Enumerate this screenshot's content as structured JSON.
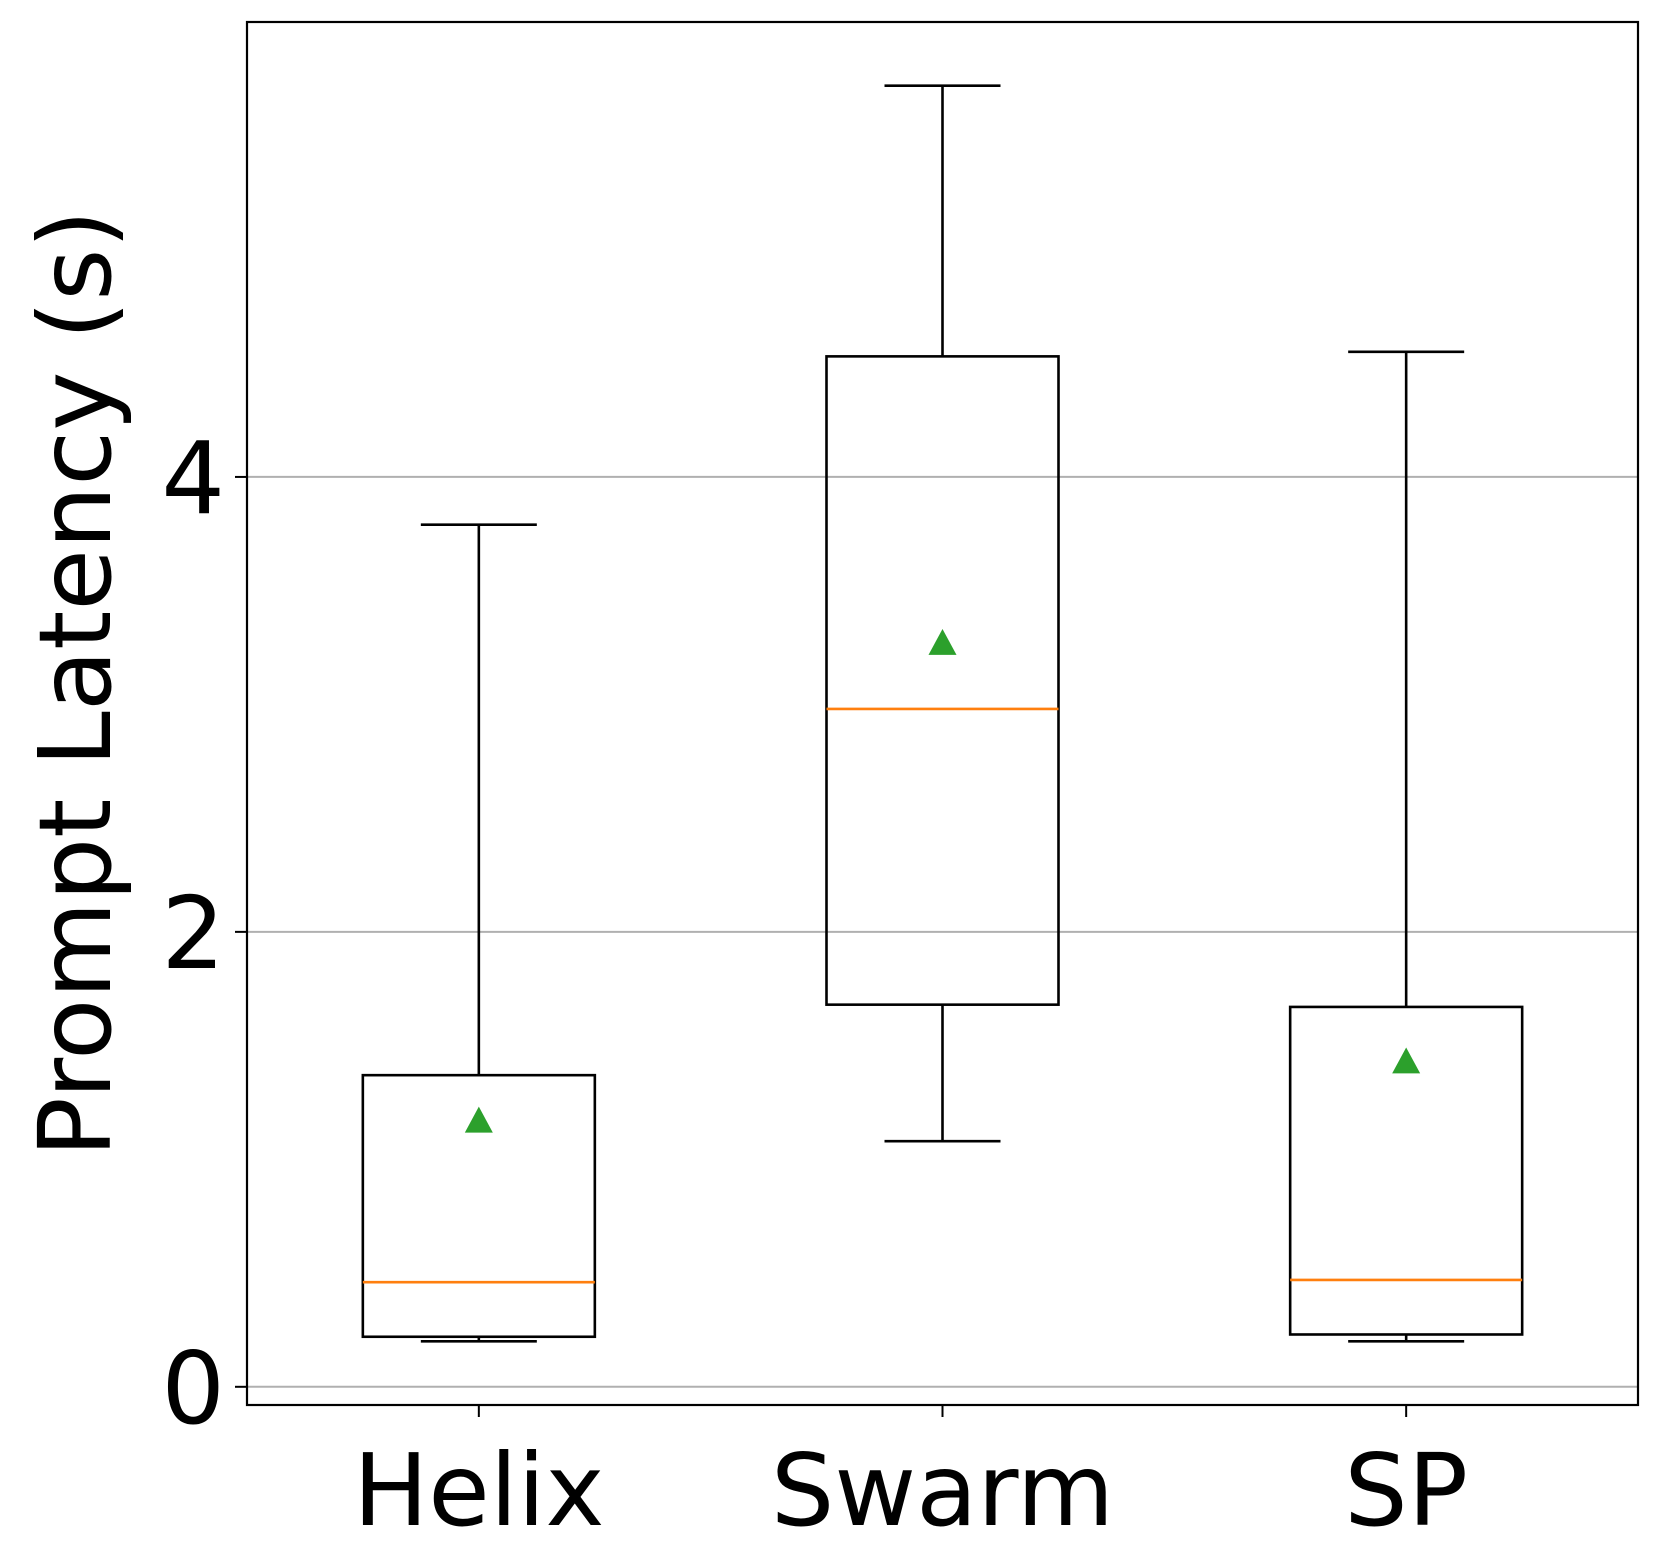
{
  "chart_data": {
    "type": "box",
    "title": "",
    "xlabel": "",
    "ylabel": "Prompt Latency (s)",
    "categories": [
      "Helix",
      "Swarm",
      "SP"
    ],
    "ylim": [
      -0.08,
      6.0
    ],
    "yticks": [
      0,
      2,
      4
    ],
    "grid": "y",
    "boxes": [
      {
        "name": "Helix",
        "whisker_low": 0.2,
        "q1": 0.22,
        "median": 0.46,
        "q3": 1.37,
        "whisker_high": 3.79,
        "mean": 1.17
      },
      {
        "name": "Swarm",
        "whisker_low": 1.08,
        "q1": 1.68,
        "median": 2.98,
        "q3": 4.53,
        "whisker_high": 5.72,
        "mean": 3.27
      },
      {
        "name": "SP",
        "whisker_low": 0.2,
        "q1": 0.23,
        "median": 0.47,
        "q3": 1.67,
        "whisker_high": 4.55,
        "mean": 1.43
      }
    ],
    "colors": {
      "box": "#000000",
      "median": "#ff7f0e",
      "mean": "#2ca02c",
      "grid": "#b0b0b0"
    }
  }
}
